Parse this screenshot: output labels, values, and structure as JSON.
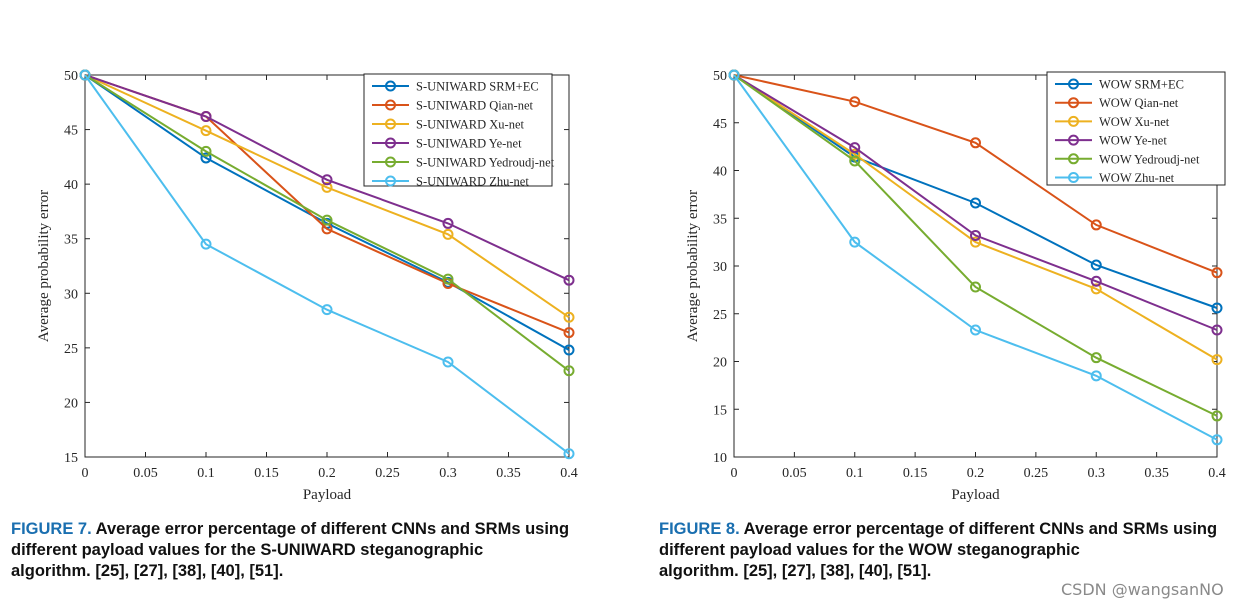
{
  "chart_data": [
    {
      "type": "line",
      "id": "fig7",
      "xlabel": "Payload",
      "ylabel": "Average probability error",
      "xlim": [
        0,
        0.4
      ],
      "ylim": [
        15,
        50
      ],
      "xticks": [
        0,
        0.05,
        0.1,
        0.15,
        0.2,
        0.25,
        0.3,
        0.35,
        0.4
      ],
      "xtick_labels": [
        "0",
        "0.05",
        "0.1",
        "0.15",
        "0.2",
        "0.25",
        "0.3",
        "0.35",
        "0.4"
      ],
      "yticks": [
        15,
        20,
        25,
        30,
        35,
        40,
        45,
        50
      ],
      "ytick_labels": [
        "15",
        "20",
        "25",
        "30",
        "35",
        "40",
        "45",
        "50"
      ],
      "grid": true,
      "legend_position": "top-right",
      "x": [
        0,
        0.1,
        0.2,
        0.3,
        0.4
      ],
      "series": [
        {
          "name": "S-UNIWARD SRM+EC",
          "color": "#0072BD",
          "values": [
            50,
            42.4,
            36.4,
            31.0,
            24.8
          ]
        },
        {
          "name": "S-UNIWARD Qian-net",
          "color": "#D95319",
          "values": [
            50,
            46.2,
            35.9,
            30.9,
            26.4
          ]
        },
        {
          "name": "S-UNIWARD Xu-net",
          "color": "#EDB120",
          "values": [
            50,
            44.9,
            39.7,
            35.4,
            27.8
          ]
        },
        {
          "name": "S-UNIWARD Ye-net",
          "color": "#7E2F8E",
          "values": [
            50,
            46.2,
            40.4,
            36.4,
            31.2
          ]
        },
        {
          "name": "S-UNIWARD Yedroudj-net",
          "color": "#77AC30",
          "values": [
            50,
            43.0,
            36.7,
            31.3,
            22.9
          ]
        },
        {
          "name": "S-UNIWARD Zhu-net",
          "color": "#4DBEEE",
          "values": [
            50,
            34.5,
            28.5,
            23.7,
            15.3
          ]
        }
      ],
      "caption": {
        "label": "FIGURE 7.",
        "lines": [
          "Average error percentage of different CNNs and SRMs using",
          "different payload values for the S-UNIWARD steganographic",
          "algorithm. [25], [27], [38], [40], [51]."
        ]
      }
    },
    {
      "type": "line",
      "id": "fig8",
      "xlabel": "Payload",
      "ylabel": "Average probability error",
      "xlim": [
        0,
        0.4
      ],
      "ylim": [
        10,
        50
      ],
      "xticks": [
        0,
        0.05,
        0.1,
        0.15,
        0.2,
        0.25,
        0.3,
        0.35,
        0.4
      ],
      "xtick_labels": [
        "0",
        "0.05",
        "0.1",
        "0.15",
        "0.2",
        "0.25",
        "0.3",
        "0.35",
        "0.4"
      ],
      "yticks": [
        10,
        15,
        20,
        25,
        30,
        35,
        40,
        45,
        50
      ],
      "ytick_labels": [
        "10",
        "15",
        "20",
        "25",
        "30",
        "35",
        "40",
        "45",
        "50"
      ],
      "grid": true,
      "legend_position": "top-right",
      "x": [
        0,
        0.1,
        0.2,
        0.3,
        0.4
      ],
      "series": [
        {
          "name": "WOW SRM+EC",
          "color": "#0072BD",
          "values": [
            50,
            41.4,
            36.6,
            30.1,
            25.6
          ]
        },
        {
          "name": "WOW Qian-net",
          "color": "#D95319",
          "values": [
            50,
            47.2,
            42.9,
            34.3,
            29.3
          ]
        },
        {
          "name": "WOW Xu-net",
          "color": "#EDB120",
          "values": [
            50,
            41.7,
            32.5,
            27.6,
            20.2
          ]
        },
        {
          "name": "WOW Ye-net",
          "color": "#7E2F8E",
          "values": [
            50,
            42.4,
            33.2,
            28.4,
            23.3
          ]
        },
        {
          "name": "WOW Yedroudj-net",
          "color": "#77AC30",
          "values": [
            50,
            41.0,
            27.8,
            20.4,
            14.3
          ]
        },
        {
          "name": "WOW Zhu-net",
          "color": "#4DBEEE",
          "values": [
            50,
            32.5,
            23.3,
            18.5,
            11.8
          ]
        }
      ],
      "caption": {
        "label": "FIGURE 8.",
        "lines": [
          "Average error percentage of different CNNs and SRMs using",
          "different payload values for the WOW steganographic",
          "algorithm. [25], [27], [38], [40], [51]."
        ]
      }
    }
  ],
  "watermark": "CSDN @wangsanNO"
}
